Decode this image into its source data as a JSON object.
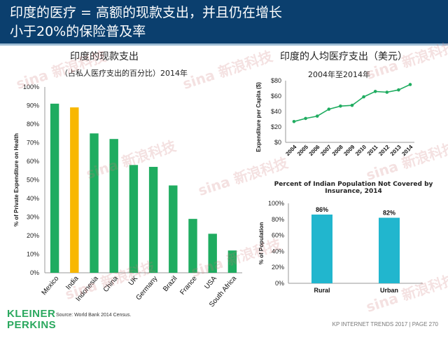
{
  "header": {
    "title_line1": "印度的医疗 = 高额的现款支出，并且仍在增长",
    "title_line2": "小于20%的保险普及率"
  },
  "left_chart": {
    "title": "印度的现款支出",
    "subtitle": "（占私人医疗支出的百分比）2014年"
  },
  "right_top": {
    "title": "印度的人均医疗支出（美元）",
    "subtitle": "2004年至2014年"
  },
  "right_bottom": {
    "title": "Percent of Indian Population Not Covered by Insurance, 2014"
  },
  "watermark": "sina 新浪科技",
  "logo": {
    "line1": "KLEINER",
    "line2": "PERKINS",
    "color": "#2aa85e"
  },
  "source": "Source: World Bank 2014 Census.",
  "footer": "KP INTERNET TRENDS 2017  |  PAGE 270",
  "chart_data": [
    {
      "type": "bar",
      "ylabel": "% of Private Expenditure on Health",
      "categories": [
        "Mexico",
        "India",
        "Indonesia",
        "China",
        "UK",
        "Germany",
        "Brazil",
        "France",
        "USA",
        "South Africa"
      ],
      "values": [
        91,
        89,
        75,
        72,
        58,
        57,
        47,
        29,
        21,
        12
      ],
      "ylim": [
        0,
        100
      ],
      "yticks": [
        "0%",
        "10%",
        "20%",
        "30%",
        "40%",
        "50%",
        "60%",
        "70%",
        "80%",
        "90%",
        "100%"
      ],
      "bar_color": "#1fac60",
      "highlight_category": "India",
      "highlight_color": "#f8b700"
    },
    {
      "type": "line",
      "ylabel": "Expenditure per Capita ($)",
      "x": [
        "2004",
        "2005",
        "2006",
        "2007",
        "2008",
        "2009",
        "2010",
        "2011",
        "2012",
        "2013",
        "2014"
      ],
      "values": [
        27,
        31,
        34,
        43,
        47,
        48,
        59,
        66,
        65,
        68,
        75
      ],
      "ylim": [
        0,
        80
      ],
      "yticks": [
        "$0",
        "$20",
        "$40",
        "$60",
        "$80"
      ],
      "line_color": "#1fac60"
    },
    {
      "type": "bar",
      "ylabel": "% of Population",
      "categories": [
        "Rural",
        "Urban"
      ],
      "values": [
        86,
        82
      ],
      "data_labels": [
        "86%",
        "82%"
      ],
      "ylim": [
        0,
        100
      ],
      "yticks": [
        "0%",
        "20%",
        "40%",
        "60%",
        "80%",
        "100%"
      ],
      "bar_color": "#21b6ce"
    }
  ]
}
